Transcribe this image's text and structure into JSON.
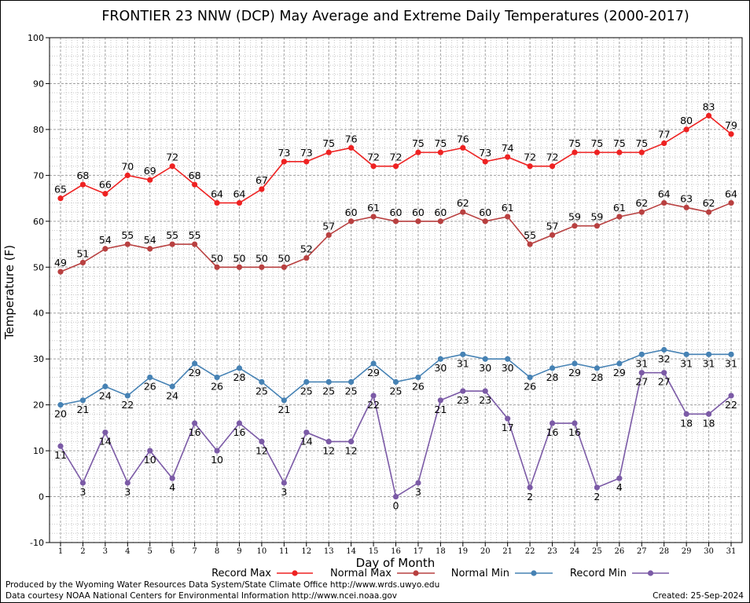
{
  "chart_data": {
    "type": "line",
    "title": "FRONTIER 23 NNW (DCP) May Average and Extreme Daily Temperatures (2000-2017)",
    "xlabel": "Day of Month",
    "ylabel": "Temperature (F)",
    "ylim": [
      -10,
      100
    ],
    "xlim": [
      1,
      31
    ],
    "grid": true,
    "legend": "bottom",
    "yticks": [
      "-10",
      "0",
      "10",
      "20",
      "30",
      "40",
      "50",
      "60",
      "70",
      "80",
      "90",
      "100"
    ],
    "x": [
      1,
      2,
      3,
      4,
      5,
      6,
      7,
      8,
      9,
      10,
      11,
      12,
      13,
      14,
      15,
      16,
      17,
      18,
      19,
      20,
      21,
      22,
      23,
      24,
      25,
      26,
      27,
      28,
      29,
      30,
      31
    ],
    "series": [
      {
        "name": "Record Max",
        "color": "#ee2222",
        "values": [
          65,
          68,
          66,
          70,
          69,
          72,
          68,
          64,
          64,
          67,
          73,
          73,
          75,
          76,
          72,
          72,
          75,
          75,
          76,
          73,
          74,
          72,
          72,
          75,
          75,
          75,
          75,
          77,
          80,
          83,
          79
        ],
        "label_pos": "above"
      },
      {
        "name": "Normal Max",
        "color": "#b84040",
        "values": [
          49,
          51,
          54,
          55,
          54,
          55,
          55,
          50,
          50,
          50,
          50,
          52,
          57,
          60,
          61,
          60,
          60,
          60,
          62,
          60,
          61,
          55,
          57,
          59,
          59,
          61,
          62,
          64,
          63,
          62,
          64
        ],
        "label_pos": "above"
      },
      {
        "name": "Normal Min",
        "color": "#4682b4",
        "values": [
          20,
          21,
          24,
          22,
          26,
          24,
          29,
          26,
          28,
          25,
          21,
          25,
          25,
          25,
          29,
          25,
          26,
          30,
          31,
          30,
          30,
          26,
          28,
          29,
          28,
          29,
          31,
          32,
          31,
          31,
          31
        ],
        "label_pos": "below"
      },
      {
        "name": "Record Min",
        "color": "#7b5aa6",
        "values": [
          11,
          3,
          14,
          3,
          10,
          4,
          16,
          10,
          16,
          12,
          3,
          14,
          12,
          12,
          22,
          0,
          3,
          21,
          23,
          23,
          17,
          2,
          16,
          16,
          2,
          4,
          27,
          27,
          18,
          18,
          22
        ],
        "label_pos": "below"
      }
    ]
  },
  "footer": {
    "produced_by": "Produced by the Wyoming Water Resources Data System/State Climate Office http://www.wrds.uwyo.edu",
    "data_courtesy": "Data courtesy NOAA National Centers for Environmental Information http://www.ncei.noaa.gov",
    "created": "Created:  25-Sep-2024"
  }
}
